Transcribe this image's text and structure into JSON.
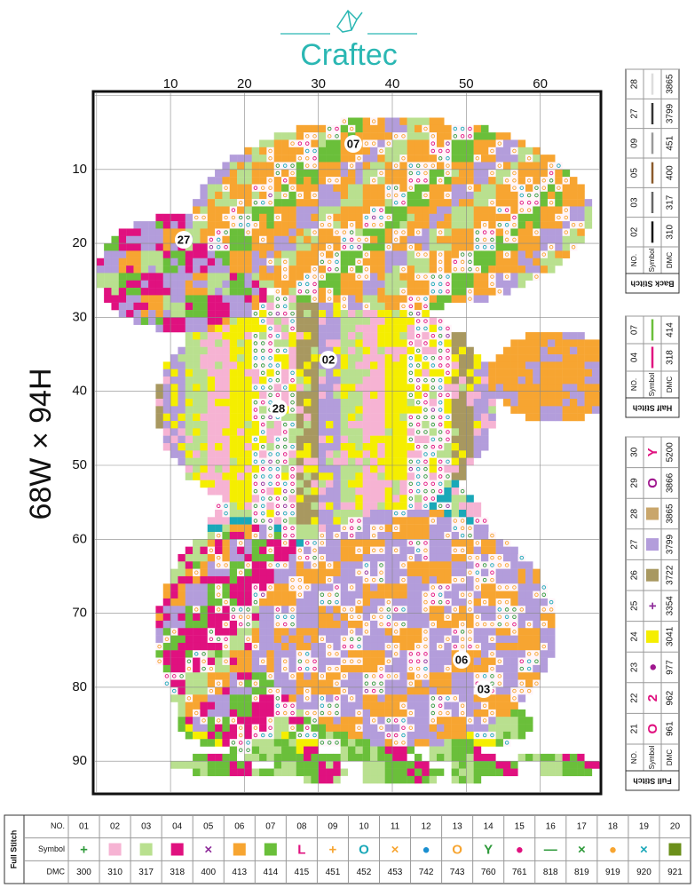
{
  "brand": "Craftec",
  "size_label": "68W × 94H",
  "grid": {
    "x_ticks": [
      "10",
      "20",
      "30",
      "40",
      "50",
      "60"
    ],
    "y_ticks": [
      "10",
      "20",
      "30",
      "40",
      "50",
      "60",
      "70",
      "80",
      "90"
    ]
  },
  "pattern_labels": [
    "07",
    "27",
    "02",
    "28",
    "06",
    "03"
  ],
  "back_stitch": {
    "title": "Back Stitch",
    "headers": [
      "NO.",
      "Symbol",
      "DMC"
    ],
    "rows": [
      {
        "no": "02",
        "dmc": "310",
        "color": "#111111"
      },
      {
        "no": "03",
        "dmc": "317",
        "color": "#666666"
      },
      {
        "no": "05",
        "dmc": "400",
        "color": "#8a5a2b"
      },
      {
        "no": "09",
        "dmc": "451",
        "color": "#999999"
      },
      {
        "no": "27",
        "dmc": "3799",
        "color": "#333333"
      },
      {
        "no": "28",
        "dmc": "3865",
        "color": "#dddddd"
      }
    ]
  },
  "half_stitch": {
    "title": "Half Stitch",
    "headers": [
      "NO.",
      "Symbol",
      "DMC"
    ],
    "rows": [
      {
        "no": "04",
        "dmc": "318",
        "color": "#e0117f"
      },
      {
        "no": "07",
        "dmc": "414",
        "color": "#6abf3a"
      }
    ]
  },
  "full_stitch_side": {
    "title": "Full Stitch",
    "headers": [
      "NO.",
      "Symbol",
      "DMC"
    ],
    "rows": [
      {
        "no": "21",
        "dmc": "961",
        "glyph": "O",
        "color": "#e0117f"
      },
      {
        "no": "22",
        "dmc": "962",
        "glyph": "2",
        "color": "#e0117f"
      },
      {
        "no": "23",
        "dmc": "977",
        "glyph": "●",
        "color": "#a0178f"
      },
      {
        "no": "24",
        "dmc": "3041",
        "swatch": "#f5ee00"
      },
      {
        "no": "25",
        "dmc": "3354",
        "glyph": "+",
        "color": "#8e2b9a"
      },
      {
        "no": "26",
        "dmc": "3722",
        "swatch": "#a89860"
      },
      {
        "no": "27",
        "dmc": "3799",
        "swatch": "#b39ddb"
      },
      {
        "no": "28",
        "dmc": "3865",
        "swatch": "#c9a66b"
      },
      {
        "no": "29",
        "dmc": "3866",
        "glyph": "O",
        "color": "#a0178f"
      },
      {
        "no": "30",
        "dmc": "5200",
        "glyph": "Y",
        "color": "#e0117f"
      }
    ]
  },
  "full_stitch_bottom": {
    "title": "Full Stitch",
    "headers": [
      "NO.",
      "Symbol",
      "DMC"
    ],
    "cols": [
      {
        "no": "01",
        "dmc": "300",
        "glyph": "+",
        "color": "#2e9a3a"
      },
      {
        "no": "02",
        "dmc": "310",
        "swatch": "#f6b3d3"
      },
      {
        "no": "03",
        "dmc": "317",
        "swatch": "#b9e08f"
      },
      {
        "no": "04",
        "dmc": "318",
        "swatch": "#e0117f"
      },
      {
        "no": "05",
        "dmc": "400",
        "glyph": "×",
        "color": "#8e2b9a"
      },
      {
        "no": "06",
        "dmc": "413",
        "swatch": "#f7a531"
      },
      {
        "no": "07",
        "dmc": "414",
        "swatch": "#6abf3a"
      },
      {
        "no": "08",
        "dmc": "415",
        "glyph": "L",
        "color": "#e0117f"
      },
      {
        "no": "09",
        "dmc": "451",
        "glyph": "+",
        "color": "#f7a531"
      },
      {
        "no": "10",
        "dmc": "452",
        "glyph": "O",
        "color": "#1aa8b8"
      },
      {
        "no": "11",
        "dmc": "453",
        "glyph": "×",
        "color": "#f7a531"
      },
      {
        "no": "12",
        "dmc": "742",
        "glyph": "●",
        "color": "#1a8fd0"
      },
      {
        "no": "13",
        "dmc": "743",
        "glyph": "O",
        "color": "#f7a531"
      },
      {
        "no": "14",
        "dmc": "760",
        "glyph": "Y",
        "color": "#2e9a3a"
      },
      {
        "no": "15",
        "dmc": "761",
        "glyph": "●",
        "color": "#e0117f"
      },
      {
        "no": "16",
        "dmc": "818",
        "glyph": "—",
        "color": "#2e9a3a"
      },
      {
        "no": "17",
        "dmc": "819",
        "glyph": "×",
        "color": "#2e9a3a"
      },
      {
        "no": "18",
        "dmc": "919",
        "glyph": "●",
        "color": "#f7a531"
      },
      {
        "no": "19",
        "dmc": "920",
        "glyph": "×",
        "color": "#1aa8b8"
      },
      {
        "no": "20",
        "dmc": "921",
        "swatch": "#6b8f1a"
      }
    ]
  }
}
